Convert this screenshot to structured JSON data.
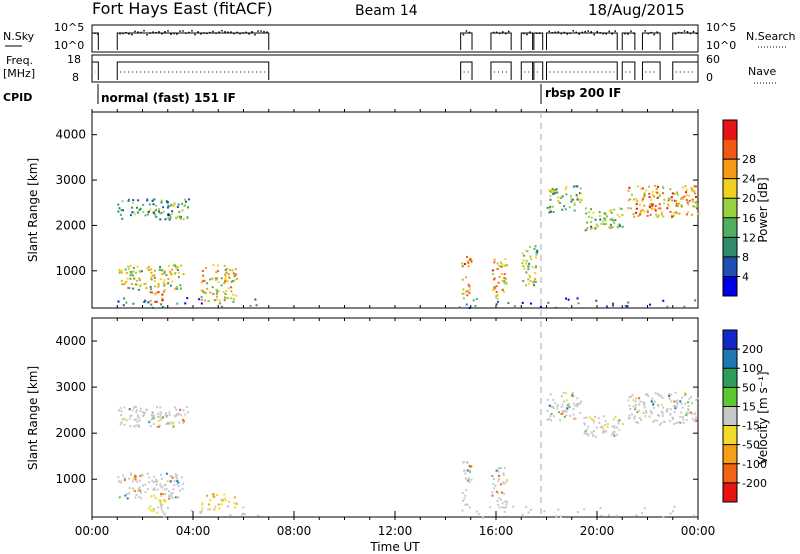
{
  "header": {
    "station": "Fort Hays East (fitACF)",
    "beam": "Beam 14",
    "date": "18/Aug/2015"
  },
  "strip_nsky": {
    "left_label": "N.Sky",
    "left_ticks": [
      "10^5",
      "10^0"
    ],
    "right_label": "N.Search",
    "right_ticks": [
      "10^5",
      "10^0"
    ]
  },
  "strip_freq": {
    "left_label_1": "Freq.",
    "left_label_2": "[MHz]",
    "left_ticks": [
      "18",
      "8"
    ],
    "right_label": "Nave",
    "right_ticks": [
      "60",
      "0"
    ]
  },
  "cpid": {
    "label": "CPID",
    "mode_1": "normal (fast) 151 IF",
    "mode_2": "rbsp 200 IF"
  },
  "x_axis": {
    "label": "Time UT",
    "ticks": [
      "00:00",
      "04:00",
      "08:00",
      "12:00",
      "16:00",
      "20:00",
      "00:00"
    ]
  },
  "chart_data": [
    {
      "type": "heatmap",
      "name": "power",
      "xlabel": "Time UT",
      "ylabel": "Slant Range [km]",
      "xlim_hours": [
        0,
        24
      ],
      "ylim_km": [
        180,
        4500
      ],
      "y_ticks": [
        "1000",
        "2000",
        "3000",
        "4000"
      ],
      "y_tick_values": [
        1000,
        2000,
        3000,
        4000
      ],
      "colorbar": {
        "label": "Power [dB]",
        "ticks": [
          "4",
          "8",
          "12",
          "16",
          "20",
          "24",
          "28"
        ],
        "colors": [
          "#0000e6",
          "#1e50b4",
          "#2f8a6e",
          "#4fae5f",
          "#98d23c",
          "#f0d21e",
          "#f59a14",
          "#f05a14",
          "#e61414"
        ],
        "range": [
          0,
          30
        ]
      },
      "echo_regions": [
        {
          "t": [
            1.0,
            3.6
          ],
          "r": [
            600,
            1150
          ],
          "level": 0.55
        },
        {
          "t": [
            2.2,
            2.9
          ],
          "r": [
            300,
            700
          ],
          "level": 0.75
        },
        {
          "t": [
            4.3,
            5.7
          ],
          "r": [
            350,
            1150
          ],
          "level": 0.6
        },
        {
          "t": [
            1.0,
            3.8
          ],
          "r": [
            2150,
            2600
          ],
          "level": 0.35
        },
        {
          "t": [
            14.6,
            15.0
          ],
          "r": [
            400,
            1400
          ],
          "level": 0.7
        },
        {
          "t": [
            15.8,
            16.4
          ],
          "r": [
            400,
            1300
          ],
          "level": 0.65
        },
        {
          "t": [
            17.0,
            17.6
          ],
          "r": [
            700,
            1600
          ],
          "level": 0.45
        },
        {
          "t": [
            18.0,
            19.4
          ],
          "r": [
            2300,
            2900
          ],
          "level": 0.4
        },
        {
          "t": [
            19.4,
            21.0
          ],
          "r": [
            1900,
            2400
          ],
          "level": 0.45
        },
        {
          "t": [
            21.2,
            24.0
          ],
          "r": [
            2200,
            2900
          ],
          "level": 0.7
        }
      ]
    },
    {
      "type": "heatmap",
      "name": "velocity",
      "xlabel": "Time UT",
      "ylabel": "Slant Range [km]",
      "xlim_hours": [
        0,
        24
      ],
      "ylim_km": [
        180,
        4500
      ],
      "y_ticks": [
        "1000",
        "2000",
        "3000",
        "4000"
      ],
      "y_tick_values": [
        1000,
        2000,
        3000,
        4000
      ],
      "colorbar": {
        "label": "Velocity [m s⁻¹]",
        "ticks": [
          "200",
          "100",
          "50",
          "15",
          "-15",
          "-50",
          "-100",
          "-200"
        ],
        "colors": [
          "#1428c8",
          "#1e78b4",
          "#2d9e5a",
          "#5ac832",
          "#c8c8c8",
          "#f0dc28",
          "#f5a014",
          "#f06414",
          "#e61414"
        ],
        "range": [
          -250,
          250
        ]
      },
      "echo_regions": [
        {
          "t": [
            1.0,
            3.6
          ],
          "r": [
            600,
            1150
          ],
          "level": 0.0
        },
        {
          "t": [
            2.2,
            2.9
          ],
          "r": [
            300,
            700
          ],
          "level": -0.6
        },
        {
          "t": [
            4.3,
            5.7
          ],
          "r": [
            350,
            700
          ],
          "level": -0.5
        },
        {
          "t": [
            1.0,
            3.8
          ],
          "r": [
            2150,
            2600
          ],
          "level": 0.0
        },
        {
          "t": [
            14.6,
            15.0
          ],
          "r": [
            400,
            1400
          ],
          "level": 0.0
        },
        {
          "t": [
            15.8,
            16.4
          ],
          "r": [
            400,
            1300
          ],
          "level": 0.0
        },
        {
          "t": [
            18.0,
            19.4
          ],
          "r": [
            2300,
            2900
          ],
          "level": 0.0
        },
        {
          "t": [
            19.4,
            21.0
          ],
          "r": [
            1900,
            2400
          ],
          "level": 0.0
        },
        {
          "t": [
            21.2,
            24.0
          ],
          "r": [
            2200,
            2900
          ],
          "level": 0.0
        }
      ]
    }
  ],
  "cpid_change_hours": 18.0,
  "operating_intervals_hours": [
    [
      0.0,
      0.25
    ],
    [
      1.0,
      7.0
    ],
    [
      14.6,
      15.05
    ],
    [
      15.8,
      16.6
    ],
    [
      17.0,
      17.45
    ],
    [
      17.5,
      17.85
    ],
    [
      18.0,
      20.8
    ],
    [
      21.0,
      21.5
    ],
    [
      21.8,
      22.5
    ],
    [
      23.0,
      24.0
    ]
  ]
}
